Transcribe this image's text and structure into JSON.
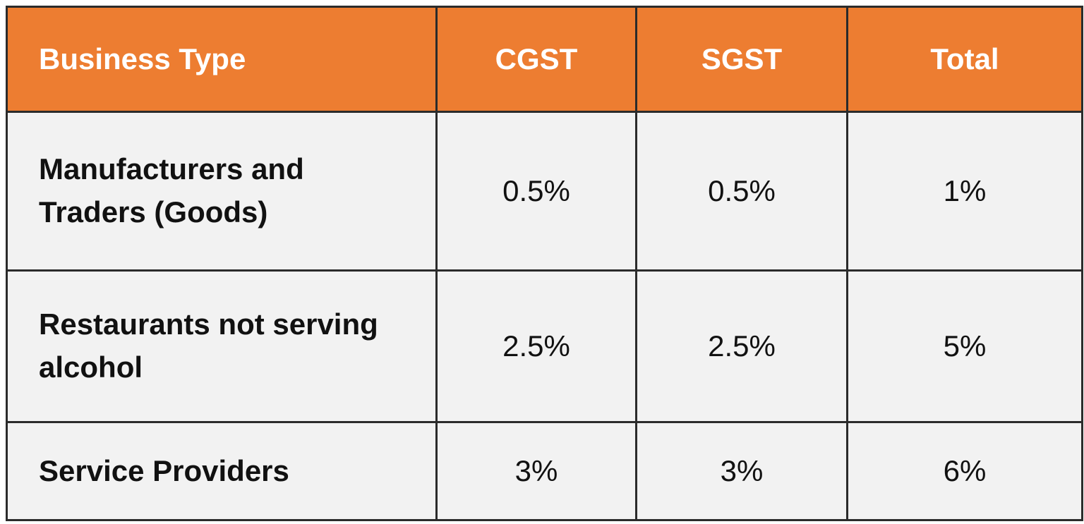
{
  "table": {
    "header": [
      "Business Type",
      "CGST",
      "SGST",
      "Total"
    ],
    "rows": [
      [
        "Manufacturers and Traders (Goods)",
        "0.5%",
        "0.5%",
        "1%"
      ],
      [
        "Restaurants not serving alcohol",
        "2.5%",
        "2.5%",
        "5%"
      ],
      [
        "Service Providers",
        "3%",
        "3%",
        "6%"
      ]
    ]
  }
}
